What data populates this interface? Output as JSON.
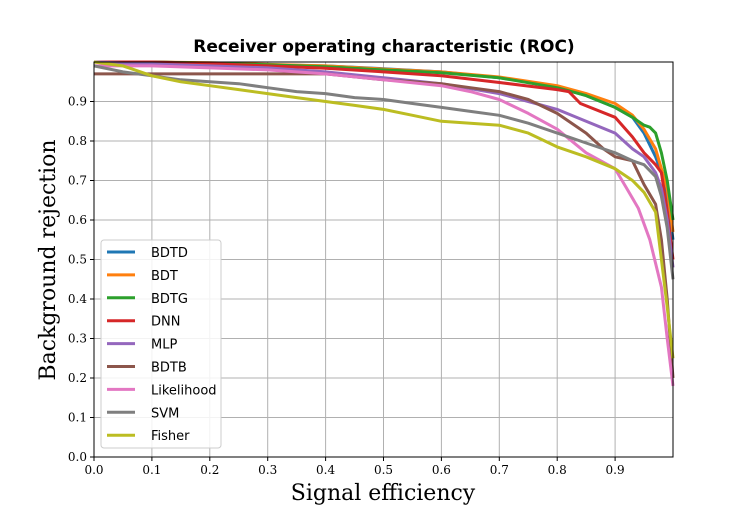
{
  "chart_data": {
    "type": "line",
    "title": "Receiver operating characteristic (ROC)",
    "xlabel": "Signal efficiency",
    "ylabel": "Background rejection",
    "xlim": [
      0.0,
      1.0
    ],
    "ylim": [
      0.0,
      1.0
    ],
    "xticks": [
      "0.0",
      "0.1",
      "0.2",
      "0.3",
      "0.4",
      "0.5",
      "0.6",
      "0.7",
      "0.8",
      "0.9"
    ],
    "yticks": [
      "0.0",
      "0.1",
      "0.2",
      "0.3",
      "0.4",
      "0.5",
      "0.6",
      "0.7",
      "0.8",
      "0.9"
    ],
    "grid": true,
    "legend_position": "lower-left",
    "series": [
      {
        "name": "BDTD",
        "color": "#1f77b4",
        "x": [
          0.0,
          0.1,
          0.2,
          0.3,
          0.4,
          0.5,
          0.6,
          0.7,
          0.75,
          0.8,
          0.85,
          0.9,
          0.93,
          0.95,
          0.97,
          0.98,
          0.99,
          1.0
        ],
        "y": [
          1.0,
          1.0,
          0.997,
          0.993,
          0.99,
          0.983,
          0.975,
          0.96,
          0.95,
          0.937,
          0.915,
          0.885,
          0.86,
          0.82,
          0.76,
          0.72,
          0.66,
          0.55
        ]
      },
      {
        "name": "BDT",
        "color": "#ff7f0e",
        "x": [
          0.0,
          0.1,
          0.2,
          0.3,
          0.4,
          0.5,
          0.6,
          0.7,
          0.8,
          0.85,
          0.9,
          0.93,
          0.95,
          0.97,
          0.98,
          0.99,
          1.0
        ],
        "y": [
          1.0,
          1.0,
          0.998,
          0.994,
          0.99,
          0.982,
          0.975,
          0.962,
          0.94,
          0.92,
          0.895,
          0.865,
          0.83,
          0.78,
          0.73,
          0.68,
          0.57
        ]
      },
      {
        "name": "BDTG",
        "color": "#2ca02c",
        "x": [
          0.0,
          0.1,
          0.2,
          0.3,
          0.4,
          0.5,
          0.6,
          0.7,
          0.8,
          0.85,
          0.9,
          0.93,
          0.95,
          0.96,
          0.97,
          0.98,
          0.99,
          1.0
        ],
        "y": [
          1.0,
          1.0,
          0.997,
          0.993,
          0.988,
          0.98,
          0.973,
          0.96,
          0.935,
          0.915,
          0.885,
          0.86,
          0.84,
          0.835,
          0.82,
          0.77,
          0.7,
          0.6
        ]
      },
      {
        "name": "DNN",
        "color": "#d62728",
        "x": [
          0.0,
          0.1,
          0.2,
          0.3,
          0.4,
          0.5,
          0.6,
          0.7,
          0.8,
          0.82,
          0.84,
          0.9,
          0.93,
          0.95,
          0.97,
          0.98,
          0.99,
          1.0
        ],
        "y": [
          1.0,
          1.0,
          0.996,
          0.99,
          0.984,
          0.975,
          0.965,
          0.948,
          0.93,
          0.925,
          0.895,
          0.86,
          0.81,
          0.77,
          0.74,
          0.72,
          0.62,
          0.5
        ]
      },
      {
        "name": "MLP",
        "color": "#9467bd",
        "x": [
          0.0,
          0.1,
          0.2,
          0.3,
          0.4,
          0.5,
          0.6,
          0.7,
          0.75,
          0.8,
          0.85,
          0.9,
          0.93,
          0.95,
          0.97,
          0.98,
          0.99,
          1.0
        ],
        "y": [
          1.0,
          0.995,
          0.99,
          0.985,
          0.975,
          0.96,
          0.945,
          0.92,
          0.9,
          0.88,
          0.85,
          0.82,
          0.78,
          0.76,
          0.72,
          0.68,
          0.6,
          0.48
        ]
      },
      {
        "name": "BDTB",
        "color": "#8c564b",
        "x": [
          0.0,
          0.1,
          0.2,
          0.3,
          0.4,
          0.5,
          0.6,
          0.65,
          0.7,
          0.75,
          0.8,
          0.85,
          0.88,
          0.9,
          0.93,
          0.95,
          0.97,
          0.98,
          0.99,
          1.0
        ],
        "y": [
          0.97,
          0.97,
          0.97,
          0.97,
          0.97,
          0.955,
          0.945,
          0.935,
          0.925,
          0.905,
          0.87,
          0.82,
          0.78,
          0.76,
          0.75,
          0.69,
          0.64,
          0.55,
          0.4,
          0.2
        ]
      },
      {
        "name": "Likelihood",
        "color": "#e377c2",
        "x": [
          0.0,
          0.1,
          0.2,
          0.3,
          0.4,
          0.5,
          0.6,
          0.65,
          0.7,
          0.75,
          0.8,
          0.85,
          0.9,
          0.92,
          0.94,
          0.96,
          0.98,
          0.99,
          1.0
        ],
        "y": [
          0.99,
          0.99,
          0.985,
          0.98,
          0.97,
          0.955,
          0.94,
          0.925,
          0.905,
          0.87,
          0.83,
          0.77,
          0.73,
          0.68,
          0.63,
          0.55,
          0.43,
          0.3,
          0.18
        ]
      },
      {
        "name": "SVM",
        "color": "#7f7f7f",
        "x": [
          0.0,
          0.05,
          0.1,
          0.15,
          0.2,
          0.25,
          0.3,
          0.35,
          0.4,
          0.45,
          0.5,
          0.55,
          0.6,
          0.65,
          0.7,
          0.75,
          0.8,
          0.85,
          0.9,
          0.93,
          0.95,
          0.97,
          0.98,
          0.99,
          1.0
        ],
        "y": [
          0.99,
          0.975,
          0.965,
          0.955,
          0.95,
          0.945,
          0.935,
          0.925,
          0.92,
          0.91,
          0.905,
          0.895,
          0.885,
          0.875,
          0.865,
          0.845,
          0.82,
          0.795,
          0.77,
          0.75,
          0.74,
          0.71,
          0.66,
          0.58,
          0.45
        ]
      },
      {
        "name": "Fisher",
        "color": "#bcbd22",
        "x": [
          0.0,
          0.05,
          0.1,
          0.15,
          0.2,
          0.25,
          0.3,
          0.35,
          0.4,
          0.45,
          0.5,
          0.55,
          0.6,
          0.65,
          0.7,
          0.75,
          0.8,
          0.85,
          0.9,
          0.93,
          0.95,
          0.97,
          0.98,
          0.99,
          1.0
        ],
        "y": [
          1.0,
          0.99,
          0.965,
          0.95,
          0.94,
          0.93,
          0.92,
          0.91,
          0.9,
          0.89,
          0.88,
          0.865,
          0.85,
          0.845,
          0.84,
          0.82,
          0.785,
          0.76,
          0.73,
          0.7,
          0.67,
          0.62,
          0.5,
          0.38,
          0.25
        ]
      }
    ]
  }
}
